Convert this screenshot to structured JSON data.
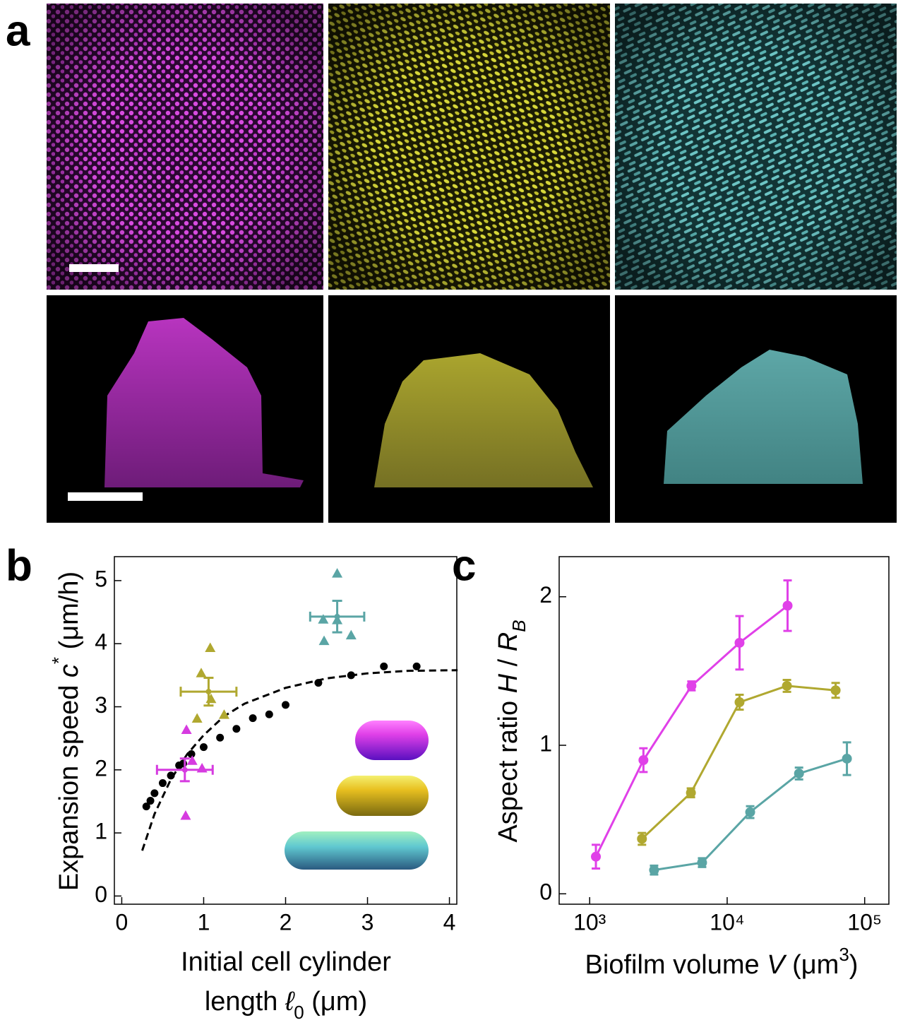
{
  "panel_labels": [
    "a",
    "b",
    "c"
  ],
  "chart_data": [
    {
      "type": "scatter",
      "ylabel": [
        "Expansion speed ",
        "c",
        "*",
        " (μm/h)"
      ],
      "xlabel": [
        [
          "Initial cell cylinder"
        ],
        [
          "length ",
          "ℓ",
          "0",
          " (μm)"
        ]
      ],
      "xlim": [
        -0.09,
        4.09
      ],
      "ylim": [
        -0.13,
        5.38
      ],
      "xticks": [
        0,
        1,
        2,
        3,
        4
      ],
      "yticks": [
        0,
        1,
        2,
        3,
        4,
        5
      ],
      "series": [
        {
          "marker": "dashed-line",
          "color": "#000000",
          "x": [
            0.25,
            0.4,
            0.6,
            0.8,
            1,
            1.25,
            1.5,
            2,
            2.5,
            3,
            3.5,
            4.1
          ],
          "values": [
            0.72,
            1.3,
            1.85,
            2.25,
            2.55,
            2.85,
            3.05,
            3.3,
            3.45,
            3.53,
            3.57,
            3.58
          ]
        },
        {
          "marker": "circle",
          "color": "#000000",
          "x": [
            0.3,
            0.35,
            0.4,
            0.5,
            0.6,
            0.7,
            0.75,
            0.85,
            1,
            1.2,
            1.4,
            1.6,
            1.8,
            2,
            2.4,
            2.8,
            3.2,
            3.6
          ],
          "values": [
            1.42,
            1.51,
            1.63,
            1.79,
            1.91,
            2.07,
            2.1,
            2.25,
            2.36,
            2.51,
            2.65,
            2.82,
            2.88,
            3.03,
            3.38,
            3.5,
            3.64,
            3.64
          ]
        },
        {
          "marker": "triangle",
          "color": "#d63be0",
          "x": [
            0.79,
            0.86,
            0.98,
            0.78
          ],
          "values": [
            2.63,
            2.14,
            2.02,
            1.27
          ]
        },
        {
          "marker": "cross",
          "color": "#d63be0",
          "x": [
            0.77
          ],
          "values": [
            2.0
          ],
          "xerr": [
            0.34
          ],
          "yerr": [
            0.18
          ]
        },
        {
          "marker": "triangle",
          "color": "#b0a830",
          "x": [
            1.08,
            0.97,
            0.92,
            1.09,
            1.25
          ],
          "values": [
            3.93,
            3.53,
            2.81,
            3.12,
            2.87
          ]
        },
        {
          "marker": "cross",
          "color": "#b0a830",
          "x": [
            1.06
          ],
          "values": [
            3.24
          ],
          "xerr": [
            0.34
          ],
          "yerr": [
            0.22
          ]
        },
        {
          "marker": "triangle",
          "color": "#5aa5a5",
          "x": [
            2.63,
            2.46,
            2.63,
            2.47,
            2.8
          ],
          "values": [
            5.11,
            4.38,
            4.37,
            4.04,
            4.13
          ]
        },
        {
          "marker": "cross",
          "color": "#5aa5a5",
          "x": [
            2.63
          ],
          "values": [
            4.43
          ],
          "xerr": [
            0.33
          ],
          "yerr": [
            0.25
          ]
        }
      ]
    },
    {
      "type": "line",
      "xscale": "log",
      "ylabel": [
        "Aspect ratio ",
        "H",
        " / ",
        "R",
        "B"
      ],
      "xlabel": [
        "Biofilm volume ",
        "V",
        " (μm",
        "3",
        ")"
      ],
      "xlim": [
        600,
        150000
      ],
      "ylim": [
        -0.07,
        2.27
      ],
      "xticks": [
        {
          "value": 1000,
          "label": "10³"
        },
        {
          "value": 10000,
          "label": "10⁴"
        },
        {
          "value": 100000,
          "label": "10⁵"
        }
      ],
      "yticks": [
        0,
        1,
        2
      ],
      "series": [
        {
          "color": "#e040e8",
          "x": [
            1110,
            2460,
            5500,
            12300,
            27500
          ],
          "values": [
            0.25,
            0.9,
            1.4,
            1.69,
            1.94
          ],
          "errors": [
            0.08,
            0.08,
            0.03,
            0.18,
            0.17
          ]
        },
        {
          "color": "#b0a830",
          "x": [
            2400,
            5450,
            12300,
            27200,
            61500
          ],
          "values": [
            0.37,
            0.68,
            1.29,
            1.4,
            1.37
          ],
          "errors": [
            0.04,
            0.03,
            0.05,
            0.04,
            0.05
          ]
        },
        {
          "color": "#5aa5a5",
          "x": [
            2940,
            6570,
            14700,
            33300,
            74300
          ],
          "values": [
            0.16,
            0.21,
            0.55,
            0.81,
            0.91
          ],
          "errors": [
            0.03,
            0.03,
            0.04,
            0.04,
            0.11
          ]
        }
      ]
    }
  ]
}
